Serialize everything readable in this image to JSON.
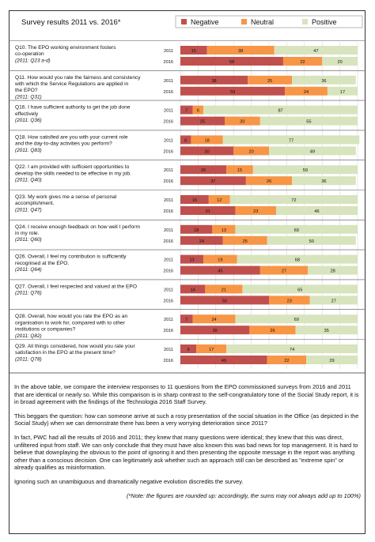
{
  "chart_data": {
    "type": "bar",
    "stacked": "percent-horizontal",
    "title": "Survey results 2011 vs. 2016*",
    "legend": [
      {
        "name": "Negative",
        "color": "#c0504d"
      },
      {
        "name": "Neutral",
        "color": "#f79646"
      },
      {
        "name": "Positive",
        "color": "#d7e4bd"
      }
    ],
    "legend_placement": "top-right",
    "grid": true,
    "xlim": [
      0,
      100
    ],
    "questions": [
      {
        "code": "Q10.",
        "text": "The EPO working environment fosters co-operation",
        "ref": "(2011: Q23 a-d)",
        "rows": [
          {
            "year": "2011",
            "values": [
              15,
              38,
              47
            ]
          },
          {
            "year": "2016",
            "values": [
              58,
              22,
              20
            ]
          }
        ]
      },
      {
        "code": "Q11.",
        "text": "How would you rate the fairness and consistency with which the Service Regulations are applied in the EPO?",
        "ref": "(2011: Q31)",
        "rows": [
          {
            "year": "2011",
            "values": [
              38,
              25,
              36
            ]
          },
          {
            "year": "2016",
            "values": [
              59,
              24,
              17
            ]
          }
        ]
      },
      {
        "code": "Q16.",
        "text": "I have sufficient authority to get the job done effectively",
        "ref": "(2011: Q36)",
        "rows": [
          {
            "year": "2011",
            "values": [
              7,
              6,
              87
            ]
          },
          {
            "year": "2016",
            "values": [
              25,
              20,
              55
            ]
          }
        ]
      },
      {
        "code": "Q18.",
        "text": "How satisfied are you with your current role and the day-to-day activities you perform?",
        "ref": "(2011: Q83)",
        "rows": [
          {
            "year": "2011",
            "values": [
              6,
              18,
              77
            ]
          },
          {
            "year": "2016",
            "values": [
              30,
              20,
              49
            ]
          }
        ]
      },
      {
        "code": "Q22.",
        "text": "I am provided with sufficient opportunities to develop the skills needed to be effective in my job.",
        "ref": "(2011: Q40)",
        "rows": [
          {
            "year": "2011",
            "values": [
              26,
              15,
              59
            ]
          },
          {
            "year": "2016",
            "values": [
              37,
              26,
              36
            ]
          }
        ]
      },
      {
        "code": "Q23.",
        "text": "My work gives me a sense of personal accomplishment.",
        "ref": "(2011: Q47)",
        "rows": [
          {
            "year": "2011",
            "values": [
              16,
              12,
              72
            ]
          },
          {
            "year": "2016",
            "values": [
              31,
              23,
              46
            ]
          }
        ]
      },
      {
        "code": "Q24.",
        "text": "I receive enough feedback on how well I perform in my role.",
        "ref": "(2011: Q60)",
        "rows": [
          {
            "year": "2011",
            "values": [
              18,
              13,
              69
            ]
          },
          {
            "year": "2016",
            "values": [
              24,
              25,
              50
            ]
          }
        ]
      },
      {
        "code": "Q26.",
        "text": "Overall, I feel my contribution is sufficiently recognised at the EPO.",
        "ref": "(2011: Q64)",
        "rows": [
          {
            "year": "2011",
            "values": [
              13,
              19,
              68
            ]
          },
          {
            "year": "2016",
            "values": [
              45,
              27,
              28
            ]
          }
        ]
      },
      {
        "code": "Q27.",
        "text": "Overall, I feel respected and valued at the EPO",
        "ref": "(2011: Q76)",
        "rows": [
          {
            "year": "2011",
            "values": [
              14,
              21,
              65
            ]
          },
          {
            "year": "2016",
            "values": [
              50,
              23,
              27
            ]
          }
        ]
      },
      {
        "code": "Q28.",
        "text": "Overall, how would you rate the EPO as an organisation to work for, compared with to other institutions or companies?",
        "ref": "(2011: Q82)",
        "rows": [
          {
            "year": "2011",
            "values": [
              7,
              24,
              69
            ]
          },
          {
            "year": "2016",
            "values": [
              39,
              26,
              35
            ]
          }
        ]
      },
      {
        "code": "Q29.",
        "text": "All things considered, how would you rate your satisfaction in the EPO at the present time?",
        "ref": "(2011: Q78)",
        "rows": [
          {
            "year": "2011",
            "values": [
              9,
              17,
              74
            ]
          },
          {
            "year": "2016",
            "values": [
              49,
              22,
              29
            ]
          }
        ]
      }
    ]
  },
  "commentary": {
    "paragraphs": [
      "In the above table, we compare the interview responses to 11 questions from the EPO commissioned surveys from 2016 and 2011 that are identical or nearly so. While this comparison is in sharp contrast to the self-congratulatory tone of the Social Study report, it is in broad agreement with the findings of the Technologia 2016 Staff Survey.",
      "This beggars the question: how can someone arrive at such a rosy presentation of the social situation in the Office (as depicted in the Social Study) when we can demonstrate there has been a very worrying deterioration since 2011?",
      "In fact, PWC had all the results of 2016 and 2011; they knew that many questions were identical; they knew that this was direct, unfiltered input from staff. We can only conclude that they must have also known this was bad news for top management. It is hard to believe that downplaying the obvious to the point of ignoring it and then presenting the opposite message in the report was anything other than a conscious decision. One can legitimately ask whether such an approach still can be described as \"extreme spin\" or already qualifies as misinformation.",
      "Ignoring such an unambiguous and dramatically negative evolution discredits the survey."
    ],
    "footnote": "(*Note: the figures are rounded up: accordingly, the sums may not always add up to 100%)"
  }
}
